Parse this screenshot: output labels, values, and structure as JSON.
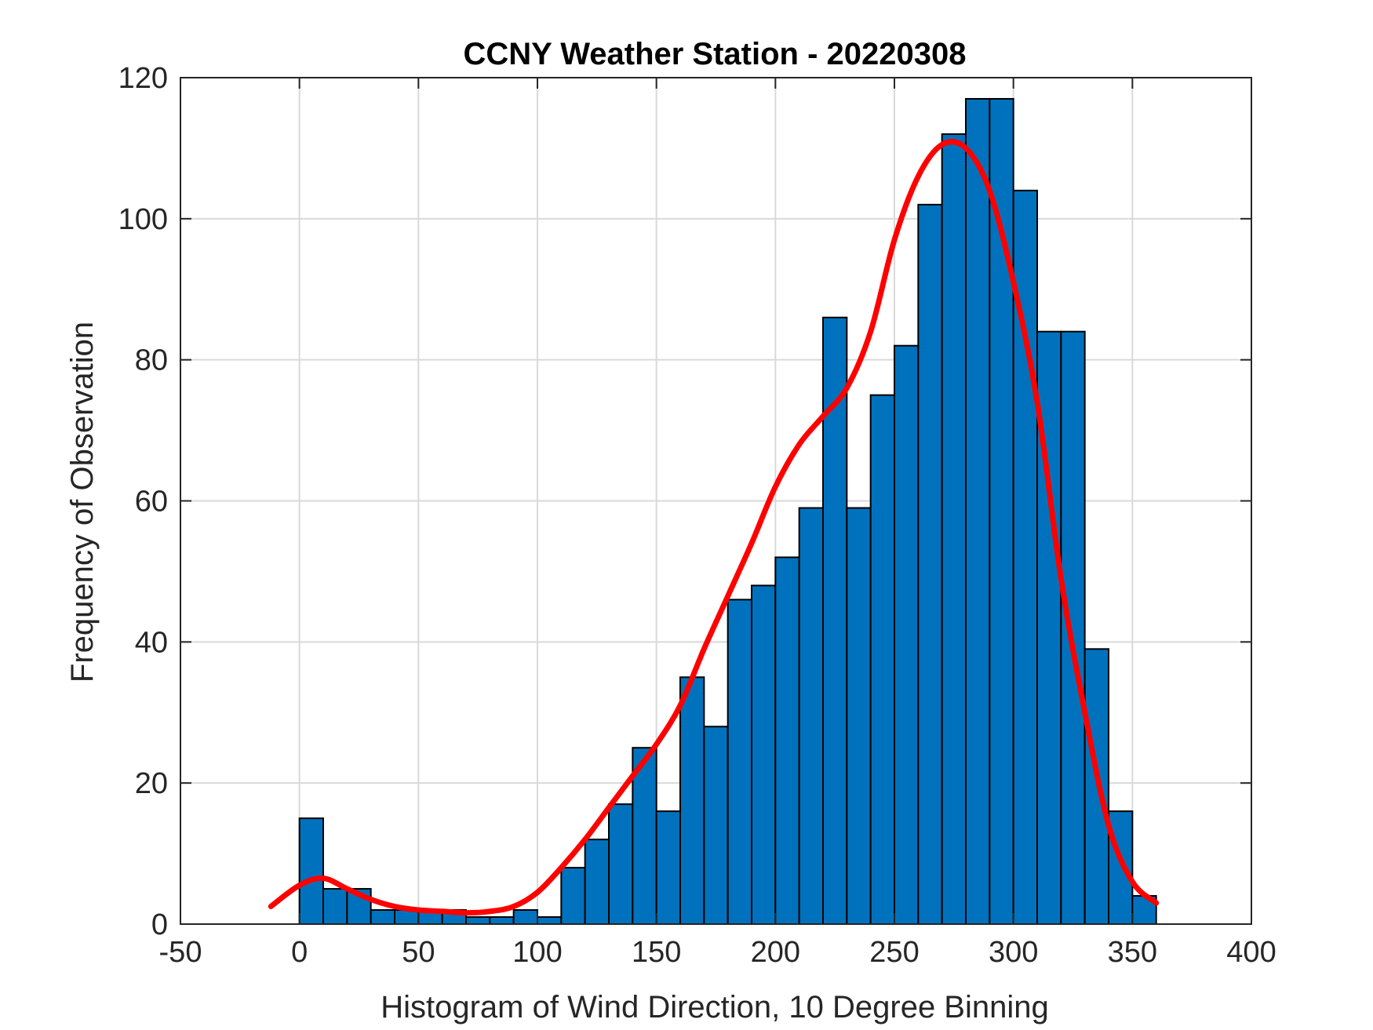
{
  "chart_data": {
    "type": "bar",
    "title": "CCNY Weather Station - 20220308",
    "xlabel": "Histogram of Wind Direction, 10 Degree Binning",
    "ylabel": "Frequency of Observation",
    "xlim": [
      -50,
      400
    ],
    "ylim": [
      0,
      120
    ],
    "xticks": [
      -50,
      0,
      50,
      100,
      150,
      200,
      250,
      300,
      350,
      400
    ],
    "yticks": [
      0,
      20,
      40,
      60,
      80,
      100,
      120
    ],
    "grid": true,
    "bin_width": 10,
    "bins": [
      {
        "x0": 0,
        "value": 15
      },
      {
        "x0": 10,
        "value": 5
      },
      {
        "x0": 20,
        "value": 5
      },
      {
        "x0": 30,
        "value": 2
      },
      {
        "x0": 40,
        "value": 2
      },
      {
        "x0": 50,
        "value": 2
      },
      {
        "x0": 60,
        "value": 2
      },
      {
        "x0": 70,
        "value": 1
      },
      {
        "x0": 80,
        "value": 1
      },
      {
        "x0": 90,
        "value": 2
      },
      {
        "x0": 100,
        "value": 1
      },
      {
        "x0": 110,
        "value": 8
      },
      {
        "x0": 120,
        "value": 12
      },
      {
        "x0": 130,
        "value": 17
      },
      {
        "x0": 140,
        "value": 25
      },
      {
        "x0": 150,
        "value": 16
      },
      {
        "x0": 160,
        "value": 35
      },
      {
        "x0": 170,
        "value": 28
      },
      {
        "x0": 180,
        "value": 46
      },
      {
        "x0": 190,
        "value": 48
      },
      {
        "x0": 200,
        "value": 52
      },
      {
        "x0": 210,
        "value": 59
      },
      {
        "x0": 220,
        "value": 86
      },
      {
        "x0": 230,
        "value": 59
      },
      {
        "x0": 240,
        "value": 75
      },
      {
        "x0": 250,
        "value": 82
      },
      {
        "x0": 260,
        "value": 102
      },
      {
        "x0": 270,
        "value": 112
      },
      {
        "x0": 280,
        "value": 117
      },
      {
        "x0": 290,
        "value": 117
      },
      {
        "x0": 300,
        "value": 104
      },
      {
        "x0": 310,
        "value": 84
      },
      {
        "x0": 320,
        "value": 84
      },
      {
        "x0": 330,
        "value": 39
      },
      {
        "x0": 340,
        "value": 16
      },
      {
        "x0": 350,
        "value": 4
      }
    ],
    "fit_curve": {
      "x": [
        -12,
        0,
        10,
        20,
        30,
        40,
        50,
        60,
        70,
        80,
        90,
        100,
        110,
        120,
        130,
        140,
        150,
        160,
        170,
        180,
        190,
        200,
        210,
        220,
        230,
        240,
        250,
        260,
        270,
        280,
        290,
        300,
        310,
        320,
        330,
        340,
        350,
        360
      ],
      "y": [
        2.5,
        5.5,
        6.5,
        5,
        3.5,
        2.5,
        2,
        1.8,
        1.6,
        1.8,
        2.5,
        4.5,
        8,
        12,
        16.5,
        21,
        25.5,
        31,
        39,
        46.5,
        54,
        62,
        68,
        72,
        76,
        84,
        97,
        106,
        110.5,
        110,
        104,
        91,
        74,
        49,
        30,
        14,
        6,
        3
      ]
    },
    "colors": {
      "bar_fill": "#0072BD",
      "bar_edge": "#000000",
      "curve": "#FF0000",
      "grid": "#D9D9D9",
      "axes": "#262626"
    }
  }
}
